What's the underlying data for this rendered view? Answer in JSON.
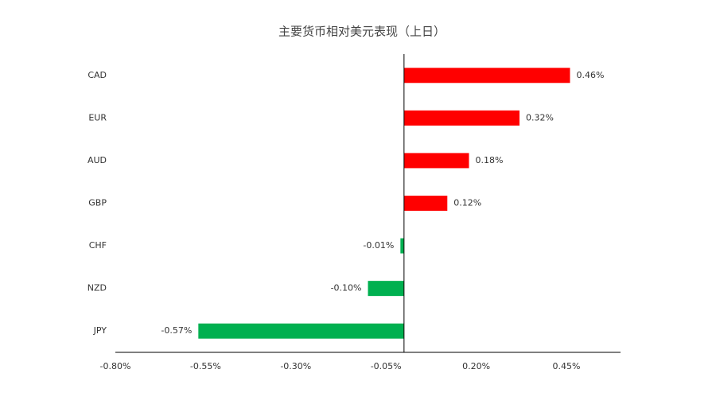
{
  "chart_data": {
    "type": "hbar",
    "title": "主要货币相对美元表现（上日）",
    "categories": [
      "CAD",
      "EUR",
      "AUD",
      "GBP",
      "CHF",
      "NZD",
      "JPY"
    ],
    "values": [
      0.46,
      0.32,
      0.18,
      0.12,
      -0.01,
      -0.1,
      -0.57
    ],
    "value_labels": [
      "0.46%",
      "0.32%",
      "0.18%",
      "0.12%",
      "-0.01%",
      "-0.10%",
      "-0.57%"
    ],
    "colors": [
      "#ff0000",
      "#ff0000",
      "#ff0000",
      "#ff0000",
      "#00b050",
      "#00b050",
      "#00b050"
    ],
    "xlim": [
      -0.8,
      0.6
    ],
    "xticks": [
      {
        "value": -0.8,
        "label": "-0.80%"
      },
      {
        "value": -0.55,
        "label": "-0.55%"
      },
      {
        "value": -0.3,
        "label": "-0.30%"
      },
      {
        "value": -0.05,
        "label": "-0.05%"
      },
      {
        "value": 0.2,
        "label": "0.20%"
      },
      {
        "value": 0.45,
        "label": "0.45%"
      }
    ],
    "grid": false
  }
}
